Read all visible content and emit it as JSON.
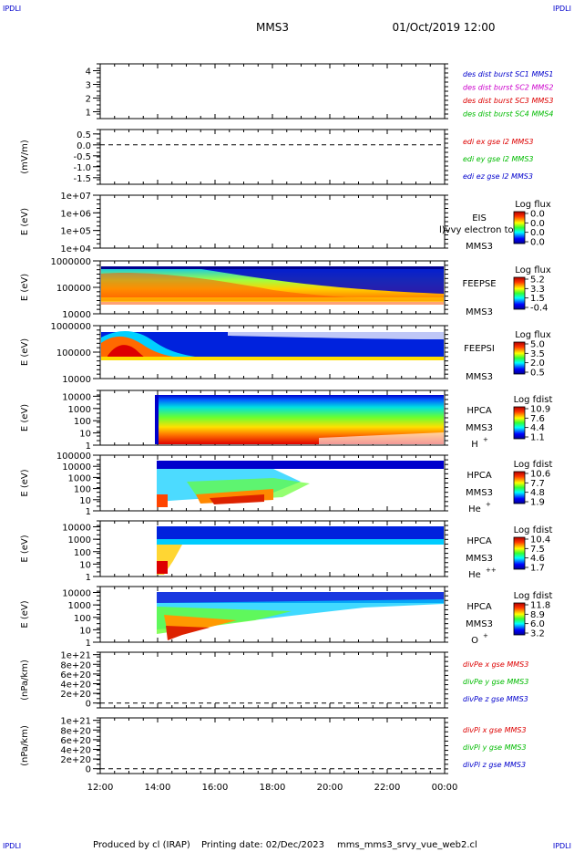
{
  "header": {
    "corner_tl": "IPDLI",
    "corner_tr": "IPDLI",
    "corner_bl": "IPDLI",
    "corner_br": "IPDLI",
    "title": "MMS3",
    "date": "01/Oct/2019 12:00"
  },
  "footer": {
    "produced": "Produced by cl (IRAP)",
    "printed": "Printing date: 02/Dec/2023",
    "file": "mms_mms3_srvy_vue_web2.cl"
  },
  "colors": {
    "red": "#dd0000",
    "magenta": "#cc00cc",
    "green": "#00bb00",
    "blue": "#0000cc",
    "dashed": "#000000"
  },
  "chart_data": {
    "type": "heatmap",
    "x_ticks": [
      "12:00",
      "14:00",
      "16:00",
      "18:00",
      "20:00",
      "22:00",
      "00:00"
    ],
    "panels": [
      {
        "id": "burst",
        "ylabel": "",
        "yticks": [
          "4",
          "3",
          "2",
          "1"
        ],
        "ylim": [
          0.5,
          4.5
        ],
        "legend": [
          {
            "text": "des dist burst SC1 MMS1",
            "color": "#0000cc"
          },
          {
            "text": "des dist burst SC2 MMS2",
            "color": "#cc00cc"
          },
          {
            "text": "des dist burst SC3 MMS3",
            "color": "#dd0000"
          },
          {
            "text": "des dist burst SC4 MMS4",
            "color": "#00bb00"
          }
        ]
      },
      {
        "id": "edi",
        "ylabel": "(mV/m)",
        "yticks": [
          "0.5",
          "0.0",
          "-0.5",
          "-1.0",
          "-1.5"
        ],
        "ylim": [
          -1.8,
          0.7
        ],
        "zero_line": 0.0,
        "legend": [
          {
            "text": "edi ex gse l2 MMS3",
            "color": "#dd0000"
          },
          {
            "text": "edi ey gse l2 MMS3",
            "color": "#00bb00"
          },
          {
            "text": "edi ez gse l2 MMS3",
            "color": "#0000cc"
          }
        ]
      },
      {
        "id": "eis",
        "ylabel": "E (eV)",
        "yticks": [
          "1e+07",
          "1e+06",
          "1e+05",
          "1e+04"
        ],
        "ylim": [
          10000,
          10000000
        ],
        "log": true,
        "instrument": [
          "EIS",
          "MMS3"
        ],
        "overlay_text": "l)vvy electron to",
        "cbar": {
          "title": "Log flux",
          "ticks": [
            "0.0",
            "0.0",
            "0.0",
            "0.0"
          ]
        }
      },
      {
        "id": "feepse",
        "ylabel": "E (eV)",
        "yticks": [
          "1000000",
          "100000",
          "10000"
        ],
        "ylim": [
          10000,
          1000000
        ],
        "log": true,
        "instrument": [
          "FEEPSE",
          "MMS3"
        ],
        "cbar": {
          "title": "Log flux",
          "ticks": [
            "5.2",
            "3.3",
            "1.5",
            "-0.4"
          ]
        }
      },
      {
        "id": "feepsi",
        "ylabel": "E (eV)",
        "yticks": [
          "1000000",
          "100000",
          "10000"
        ],
        "ylim": [
          10000,
          1000000
        ],
        "log": true,
        "instrument": [
          "FEEPSI",
          "MMS3"
        ],
        "cbar": {
          "title": "Log flux",
          "ticks": [
            "5.0",
            "3.5",
            "2.0",
            "0.5"
          ]
        }
      },
      {
        "id": "hpca_h",
        "ylabel": "E (eV)",
        "yticks": [
          "10000",
          "1000",
          "100",
          "10",
          "1"
        ],
        "ylim": [
          1,
          30000
        ],
        "log": true,
        "instrument": [
          "HPCA",
          "MMS3",
          "H",
          "+"
        ],
        "cbar": {
          "title": "Log fdist",
          "ticks": [
            "10.9",
            "7.6",
            "4.4",
            "1.1"
          ]
        }
      },
      {
        "id": "hpca_he",
        "ylabel": "E (eV)",
        "yticks": [
          "100000",
          "10000",
          "1000",
          "100",
          "10",
          "1"
        ],
        "ylim": [
          1,
          100000
        ],
        "log": true,
        "instrument": [
          "HPCA",
          "MMS3",
          "He",
          "+"
        ],
        "cbar": {
          "title": "Log fdist",
          "ticks": [
            "10.6",
            "7.7",
            "4.8",
            "1.9"
          ]
        }
      },
      {
        "id": "hpca_hepp",
        "ylabel": "E (eV)",
        "yticks": [
          "10000",
          "1000",
          "100",
          "10",
          "1"
        ],
        "ylim": [
          1,
          30000
        ],
        "log": true,
        "instrument": [
          "HPCA",
          "MMS3",
          "He",
          "++"
        ],
        "cbar": {
          "title": "Log fdist",
          "ticks": [
            "10.4",
            "7.5",
            "4.6",
            "1.7"
          ]
        }
      },
      {
        "id": "hpca_o",
        "ylabel": "E (eV)",
        "yticks": [
          "10000",
          "1000",
          "100",
          "10",
          "1"
        ],
        "ylim": [
          1,
          30000
        ],
        "log": true,
        "instrument": [
          "HPCA",
          "MMS3",
          "O",
          "+"
        ],
        "cbar": {
          "title": "Log fdist",
          "ticks": [
            "11.8",
            "8.9",
            "6.0",
            "3.2"
          ]
        }
      },
      {
        "id": "divpe",
        "ylabel": "(nPa/km)",
        "yticks": [
          "1e+21",
          "8e+20",
          "6e+20",
          "4e+20",
          "2e+20",
          "0"
        ],
        "ylim": [
          -1e+20,
          1.05e+21
        ],
        "zero_line": 0,
        "legend": [
          {
            "text": "divPe x gse MMS3",
            "color": "#dd0000"
          },
          {
            "text": "divPe y gse MMS3",
            "color": "#00bb00"
          },
          {
            "text": "divPe z gse MMS3",
            "color": "#0000cc"
          }
        ]
      },
      {
        "id": "divpi",
        "ylabel": "(nPa/km)",
        "yticks": [
          "1e+21",
          "8e+20",
          "6e+20",
          "4e+20",
          "2e+20",
          "0"
        ],
        "ylim": [
          -1e+20,
          1.05e+21
        ],
        "zero_line": 0,
        "legend": [
          {
            "text": "divPi x gse MMS3",
            "color": "#dd0000"
          },
          {
            "text": "divPi y gse MMS3",
            "color": "#00bb00"
          },
          {
            "text": "divPi z gse MMS3",
            "color": "#0000cc"
          }
        ]
      }
    ]
  }
}
